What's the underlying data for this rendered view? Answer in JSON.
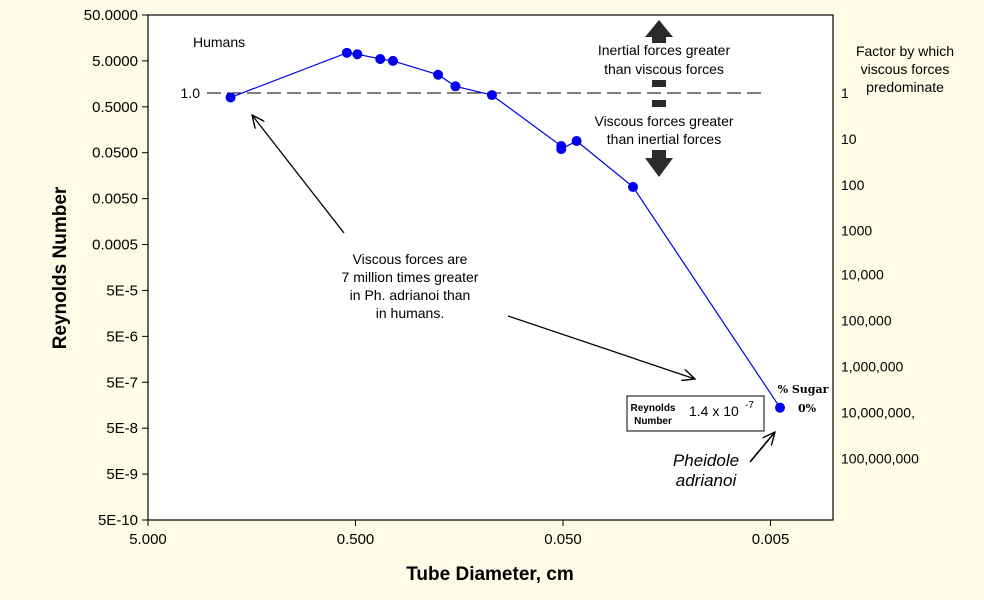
{
  "chart_data": {
    "type": "line",
    "xlabel": "Tube Diameter, cm",
    "ylabel": "Reynolds Number",
    "x_scale": "log-reversed",
    "y_scale": "log",
    "xlim": [
      5,
      0.0025
    ],
    "ylim": [
      5e-10,
      50
    ],
    "x_ticks": [
      "5.000",
      "0.500",
      "0.050",
      "0.005"
    ],
    "y_ticks": [
      "50.0000",
      "5.0000",
      "0.5000",
      "0.0500",
      "0.0050",
      "0.0005",
      "5E-5",
      "5E-6",
      "5E-7",
      "5E-8",
      "5E-9",
      "5E-10"
    ],
    "right_axis_title": [
      "Factor by which",
      "viscous forces",
      "predominate"
    ],
    "right_ticks": [
      "1",
      "10",
      "100",
      "1000",
      "10,000",
      "100,000",
      "1,000,000",
      "10,000,000,",
      "100,000,000"
    ],
    "series": [
      {
        "color": "#0000ee",
        "points": [
          {
            "x": 2.0,
            "y": 0.8
          },
          {
            "x": 0.55,
            "y": 7.5
          },
          {
            "x": 0.49,
            "y": 7.0
          },
          {
            "x": 0.38,
            "y": 5.5
          },
          {
            "x": 0.33,
            "y": 5.0
          },
          {
            "x": 0.2,
            "y": 2.5
          },
          {
            "x": 0.165,
            "y": 1.4
          },
          {
            "x": 0.11,
            "y": 0.9
          },
          {
            "x": 0.051,
            "y": 0.07
          },
          {
            "x": 0.051,
            "y": 0.06
          },
          {
            "x": 0.043,
            "y": 0.09
          },
          {
            "x": 0.023,
            "y": 0.009
          },
          {
            "x": 0.0045,
            "y": 1.4e-07
          }
        ]
      }
    ],
    "reference_line": {
      "y": 1.0,
      "label": "1.0",
      "style": "dashed"
    },
    "annotations": {
      "humans": "Humans",
      "inertial": [
        "Inertial forces greater",
        "than viscous forces"
      ],
      "viscous": [
        "Viscous forces greater",
        "than inertial forces"
      ],
      "middle": [
        "Viscous forces are",
        "7 million times greater",
        "in Ph. adrianoi than",
        "in humans."
      ],
      "sugar": "% Sugar",
      "zero": "0%",
      "species": [
        "Pheidole",
        "adrianoi"
      ],
      "box_label": [
        "Reynolds",
        "Number"
      ],
      "box_value": "1.4 x 10",
      "box_exp": "-7"
    }
  }
}
